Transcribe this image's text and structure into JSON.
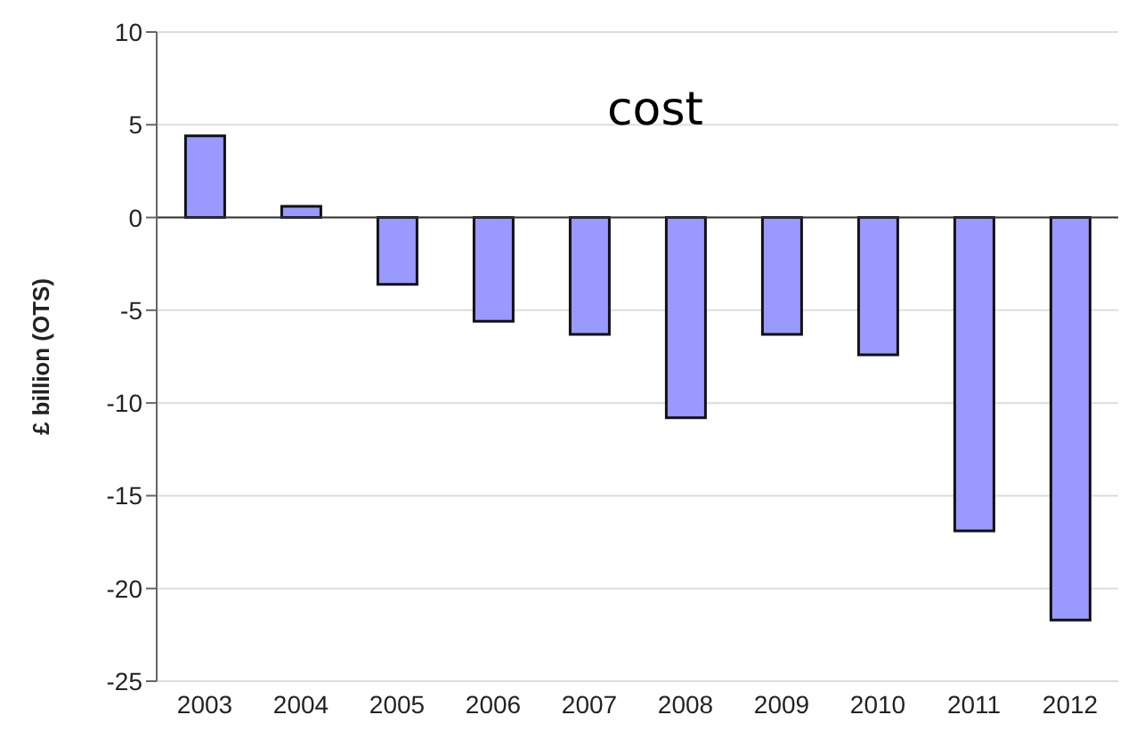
{
  "chart_data": {
    "type": "bar",
    "title": "cost",
    "ylabel": "£ billion (OTS)",
    "categories": [
      "2003",
      "2004",
      "2005",
      "2006",
      "2007",
      "2008",
      "2009",
      "2010",
      "2011",
      "2012"
    ],
    "values": [
      4.4,
      0.6,
      -3.6,
      -5.6,
      -6.3,
      -10.8,
      -6.3,
      -7.4,
      -16.9,
      -21.7
    ],
    "color": "#9999ff",
    "ylim": [
      -25,
      10
    ],
    "yticks": [
      -25,
      -20,
      -15,
      -10,
      -5,
      0,
      5,
      10
    ],
    "grid": "y"
  }
}
